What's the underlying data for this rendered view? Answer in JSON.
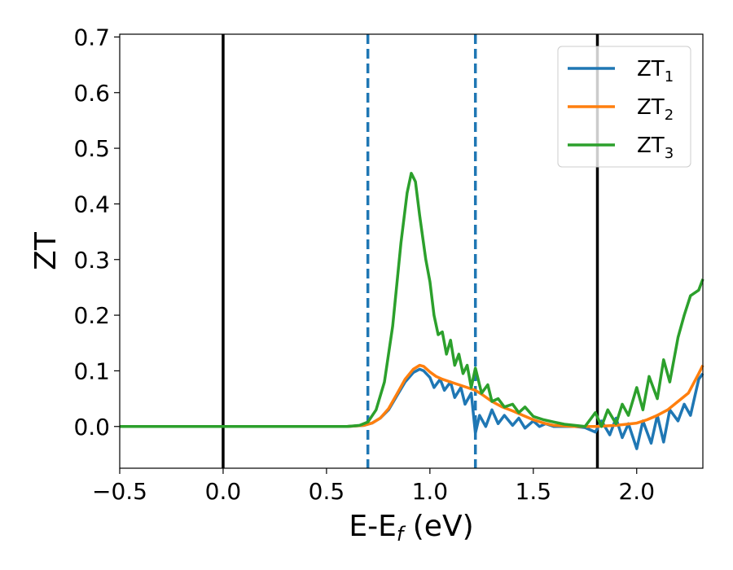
{
  "chart_data": {
    "type": "line",
    "xlabel": "E-E",
    "xlabel_sub": "f",
    "xlabel_unit": "(eV)",
    "ylabel": "ZT",
    "xlim": [
      -0.5,
      2.32
    ],
    "ylim": [
      -0.075,
      0.705
    ],
    "xticks": [
      -0.5,
      0.0,
      0.5,
      1.0,
      1.5,
      2.0
    ],
    "xtick_labels": [
      "−0.5",
      "0.0",
      "0.5",
      "1.0",
      "1.5",
      "2.0"
    ],
    "yticks": [
      0.0,
      0.1,
      0.2,
      0.3,
      0.4,
      0.5,
      0.6,
      0.7
    ],
    "ytick_labels": [
      "0.0",
      "0.1",
      "0.2",
      "0.3",
      "0.4",
      "0.5",
      "0.6",
      "0.7"
    ],
    "grid": false,
    "legend_position": "top-right",
    "vertical_lines": [
      {
        "x": 0.0,
        "style": "solid",
        "color": "#000000"
      },
      {
        "x": 0.7,
        "style": "dashed",
        "color": "#1f77b4"
      },
      {
        "x": 1.22,
        "style": "dashed",
        "color": "#1f77b4"
      },
      {
        "x": 1.81,
        "style": "solid",
        "color": "#000000"
      }
    ],
    "series": [
      {
        "name": "ZT",
        "sub": "1",
        "color": "#1f77b4",
        "x": [
          -0.5,
          0.6,
          0.68,
          0.72,
          0.76,
          0.8,
          0.84,
          0.88,
          0.92,
          0.95,
          0.97,
          1.0,
          1.02,
          1.05,
          1.07,
          1.1,
          1.12,
          1.15,
          1.17,
          1.2,
          1.22,
          1.24,
          1.27,
          1.3,
          1.33,
          1.36,
          1.4,
          1.43,
          1.46,
          1.5,
          1.53,
          1.56,
          1.6,
          1.65,
          1.7,
          1.75,
          1.8,
          1.83,
          1.87,
          1.9,
          1.93,
          1.96,
          2.0,
          2.03,
          2.07,
          2.1,
          2.13,
          2.16,
          2.2,
          2.23,
          2.26,
          2.3,
          2.32
        ],
        "y": [
          0.0,
          0.0,
          0.002,
          0.006,
          0.015,
          0.03,
          0.055,
          0.08,
          0.097,
          0.103,
          0.1,
          0.088,
          0.07,
          0.085,
          0.065,
          0.08,
          0.052,
          0.07,
          0.04,
          0.06,
          -0.012,
          0.02,
          0.0,
          0.03,
          0.005,
          0.02,
          0.002,
          0.015,
          -0.003,
          0.01,
          0.0,
          0.005,
          0.0,
          0.0,
          0.0,
          -0.002,
          -0.01,
          0.01,
          -0.015,
          0.015,
          -0.02,
          0.005,
          -0.04,
          0.01,
          -0.03,
          0.02,
          -0.028,
          0.03,
          0.01,
          0.04,
          0.02,
          0.085,
          0.095
        ]
      },
      {
        "name": "ZT",
        "sub": "2",
        "color": "#ff7f0e",
        "x": [
          -0.5,
          0.6,
          0.68,
          0.72,
          0.76,
          0.8,
          0.84,
          0.88,
          0.92,
          0.95,
          0.97,
          1.0,
          1.03,
          1.06,
          1.1,
          1.14,
          1.18,
          1.22,
          1.25,
          1.3,
          1.35,
          1.4,
          1.45,
          1.5,
          1.55,
          1.6,
          1.7,
          1.8,
          1.9,
          2.0,
          2.05,
          2.1,
          2.15,
          2.2,
          2.25,
          2.3,
          2.32
        ],
        "y": [
          0.0,
          0.0,
          0.002,
          0.006,
          0.015,
          0.032,
          0.058,
          0.085,
          0.103,
          0.11,
          0.108,
          0.098,
          0.09,
          0.085,
          0.08,
          0.075,
          0.07,
          0.065,
          0.058,
          0.045,
          0.035,
          0.028,
          0.02,
          0.012,
          0.006,
          0.002,
          0.0,
          0.0,
          0.002,
          0.006,
          0.012,
          0.02,
          0.03,
          0.045,
          0.06,
          0.095,
          0.11
        ]
      },
      {
        "name": "ZT",
        "sub": "3",
        "color": "#2ca02c",
        "x": [
          -0.5,
          0.6,
          0.66,
          0.7,
          0.74,
          0.78,
          0.82,
          0.86,
          0.89,
          0.91,
          0.93,
          0.95,
          0.98,
          1.0,
          1.02,
          1.04,
          1.06,
          1.08,
          1.1,
          1.12,
          1.14,
          1.16,
          1.18,
          1.2,
          1.22,
          1.25,
          1.28,
          1.3,
          1.33,
          1.36,
          1.4,
          1.43,
          1.46,
          1.5,
          1.55,
          1.6,
          1.65,
          1.7,
          1.75,
          1.8,
          1.83,
          1.86,
          1.9,
          1.93,
          1.96,
          2.0,
          2.03,
          2.06,
          2.1,
          2.13,
          2.16,
          2.2,
          2.23,
          2.26,
          2.3,
          2.32
        ],
        "y": [
          0.0,
          0.0,
          0.002,
          0.008,
          0.03,
          0.08,
          0.18,
          0.33,
          0.42,
          0.455,
          0.44,
          0.38,
          0.3,
          0.26,
          0.2,
          0.165,
          0.17,
          0.13,
          0.155,
          0.11,
          0.13,
          0.095,
          0.11,
          0.07,
          0.105,
          0.06,
          0.075,
          0.045,
          0.05,
          0.035,
          0.04,
          0.025,
          0.035,
          0.018,
          0.012,
          0.008,
          0.004,
          0.002,
          0.0,
          0.025,
          0.0,
          0.03,
          0.005,
          0.04,
          0.02,
          0.07,
          0.03,
          0.09,
          0.05,
          0.12,
          0.08,
          0.16,
          0.2,
          0.235,
          0.245,
          0.265
        ]
      }
    ]
  }
}
